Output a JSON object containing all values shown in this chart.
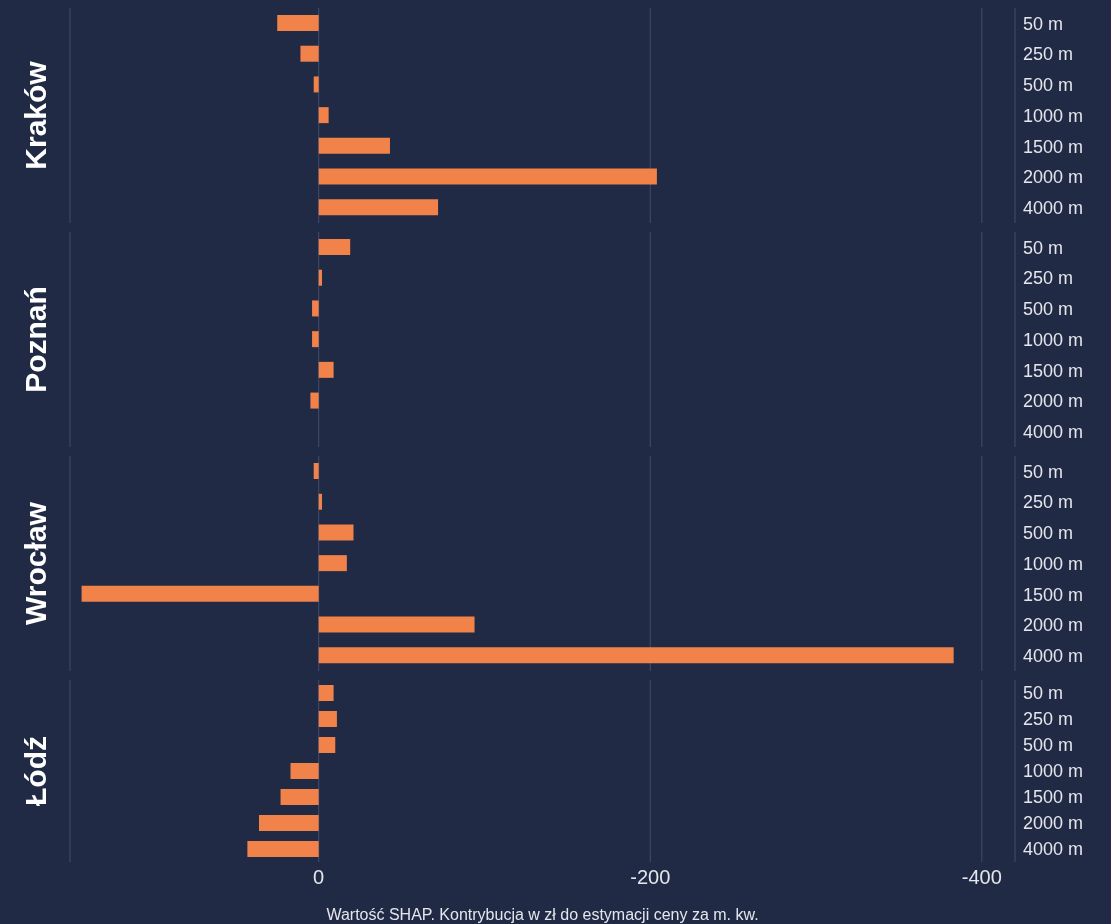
{
  "chart_data": [
    {
      "type": "bar",
      "orientation": "horizontal",
      "ylabel": "Kraków",
      "categories": [
        "50 m",
        "250 m",
        "500 m",
        "1000 m",
        "1500 m",
        "2000 m",
        "4000 m"
      ],
      "values": [
        25,
        11,
        3,
        -6,
        -43,
        -204,
        -72
      ],
      "color": "#f0824a",
      "xlim": [
        150,
        -420
      ],
      "xticks": [
        0,
        -200,
        -400
      ],
      "grid": "x",
      "tick_labels": "y"
    },
    {
      "type": "bar",
      "orientation": "horizontal",
      "ylabel": "Poznań",
      "categories": [
        "50 m",
        "250 m",
        "500 m",
        "1000 m",
        "1500 m",
        "2000 m",
        "4000 m"
      ],
      "values": [
        -19,
        -2,
        4,
        4,
        -9,
        5,
        0
      ],
      "color": "#f0824a",
      "xlim": [
        150,
        -420
      ],
      "xticks": [
        0,
        -200,
        -400
      ],
      "grid": "x",
      "tick_labels": "y"
    },
    {
      "type": "bar",
      "orientation": "horizontal",
      "ylabel": "Wrocław",
      "categories": [
        "50 m",
        "250 m",
        "500 m",
        "1000 m",
        "1500 m",
        "2000 m",
        "4000 m"
      ],
      "values": [
        3,
        -2,
        -21,
        -17,
        143,
        -94,
        -383
      ],
      "color": "#f0824a",
      "xlim": [
        150,
        -420
      ],
      "xticks": [
        0,
        -200,
        -400
      ],
      "grid": "x",
      "tick_labels": "y"
    },
    {
      "type": "bar",
      "orientation": "horizontal",
      "ylabel": "Łódź",
      "xlabel": "Wartość SHAP. Kontrybucja w zł do estymacji ceny za m. kw.",
      "categories": [
        "50 m",
        "250 m",
        "500 m",
        "1000 m",
        "1500 m",
        "2000 m",
        "4000 m"
      ],
      "values": [
        -9,
        -11,
        -10,
        17,
        23,
        36,
        43
      ],
      "color": "#f0824a",
      "xlim": [
        150,
        -420
      ],
      "xticks": [
        0,
        -200,
        -400
      ],
      "grid": "x"
    }
  ]
}
